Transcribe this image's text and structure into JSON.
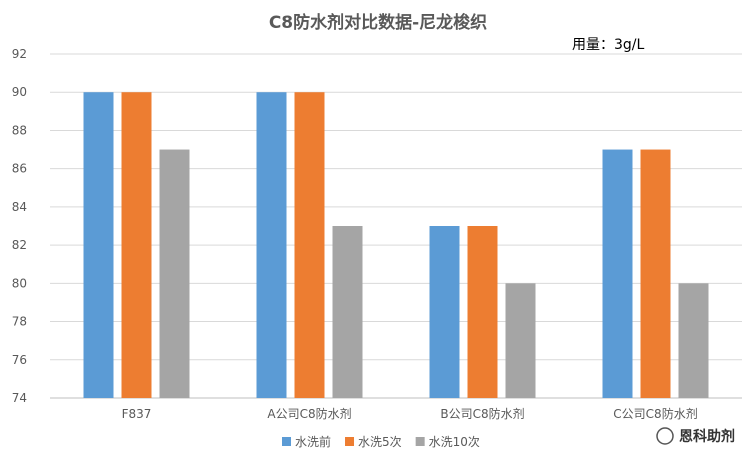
{
  "note": "用量：3g/L",
  "watermark": "恩科助剂",
  "chart_data": {
    "type": "bar",
    "title": "C8防水剂对比数据-尼龙梭织",
    "categories": [
      "F837",
      "A公司C8防水剂",
      "B公司C8防水剂",
      "C公司C8防水剂"
    ],
    "series": [
      {
        "name": "水洗前",
        "values": [
          90,
          90,
          83,
          87
        ],
        "color": "#5B9BD5"
      },
      {
        "name": "水洗5次",
        "values": [
          90,
          90,
          83,
          87
        ],
        "color": "#ED7D31"
      },
      {
        "name": "水洗10次",
        "values": [
          87,
          83,
          80,
          80
        ],
        "color": "#A5A5A5"
      }
    ],
    "ylim": [
      74,
      92
    ],
    "yticks": [
      74,
      76,
      78,
      80,
      82,
      84,
      86,
      88,
      90,
      92
    ],
    "grid": true,
    "legend": "bottom"
  }
}
